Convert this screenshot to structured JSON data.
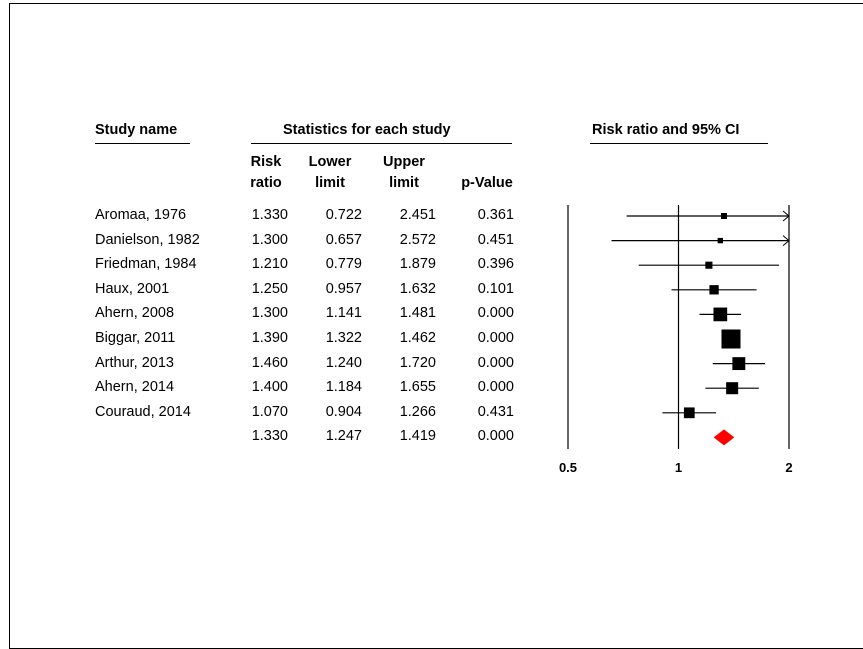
{
  "headers": {
    "study_name": "Study name",
    "statistics": "Statistics for each study",
    "plot_title": "Risk ratio and 95% CI"
  },
  "columns": [
    {
      "line1": "Risk",
      "line2": "ratio"
    },
    {
      "line1": "Lower",
      "line2": "limit"
    },
    {
      "line1": "Upper",
      "line2": "limit"
    },
    {
      "line1": "",
      "line2": "p-Value"
    }
  ],
  "rows": [
    {
      "study": "Aromaa, 1976",
      "rr": "1.330",
      "lower": "0.722",
      "upper": "2.451",
      "p": "0.361"
    },
    {
      "study": "Danielson, 1982",
      "rr": "1.300",
      "lower": "0.657",
      "upper": "2.572",
      "p": "0.451"
    },
    {
      "study": "Friedman, 1984",
      "rr": "1.210",
      "lower": "0.779",
      "upper": "1.879",
      "p": "0.396"
    },
    {
      "study": "Haux, 2001",
      "rr": "1.250",
      "lower": "0.957",
      "upper": "1.632",
      "p": "0.101"
    },
    {
      "study": "Ahern, 2008",
      "rr": "1.300",
      "lower": "1.141",
      "upper": "1.481",
      "p": "0.000"
    },
    {
      "study": "Biggar, 2011",
      "rr": "1.390",
      "lower": "1.322",
      "upper": "1.462",
      "p": "0.000"
    },
    {
      "study": "Arthur, 2013",
      "rr": "1.460",
      "lower": "1.240",
      "upper": "1.720",
      "p": "0.000"
    },
    {
      "study": "Ahern, 2014",
      "rr": "1.400",
      "lower": "1.184",
      "upper": "1.655",
      "p": "0.000"
    },
    {
      "study": "Couraud, 2014",
      "rr": "1.070",
      "lower": "0.904",
      "upper": "1.266",
      "p": "0.431"
    }
  ],
  "summary": {
    "study": "",
    "rr": "1.330",
    "lower": "1.247",
    "upper": "1.419",
    "p": "0.000"
  },
  "chart_data": {
    "type": "forest",
    "scale": "log",
    "xlim": [
      0.5,
      2
    ],
    "ticks": [
      "0.5",
      "1",
      "2"
    ],
    "reference_line": 1,
    "summary_color": "#ff0000",
    "marker_weights": [
      0.5,
      0.4,
      0.7,
      1.2,
      2.6,
      5.0,
      2.3,
      2.0,
      1.6
    ],
    "studies": [
      {
        "name": "Aromaa, 1976",
        "rr": 1.33,
        "lower": 0.722,
        "upper": 2.451
      },
      {
        "name": "Danielson, 1982",
        "rr": 1.3,
        "lower": 0.657,
        "upper": 2.572
      },
      {
        "name": "Friedman, 1984",
        "rr": 1.21,
        "lower": 0.779,
        "upper": 1.879
      },
      {
        "name": "Haux, 2001",
        "rr": 1.25,
        "lower": 0.957,
        "upper": 1.632
      },
      {
        "name": "Ahern, 2008",
        "rr": 1.3,
        "lower": 1.141,
        "upper": 1.481
      },
      {
        "name": "Biggar, 2011",
        "rr": 1.39,
        "lower": 1.322,
        "upper": 1.462
      },
      {
        "name": "Arthur, 2013",
        "rr": 1.46,
        "lower": 1.24,
        "upper": 1.72
      },
      {
        "name": "Ahern, 2014",
        "rr": 1.4,
        "lower": 1.184,
        "upper": 1.655
      },
      {
        "name": "Couraud, 2014",
        "rr": 1.07,
        "lower": 0.904,
        "upper": 1.266
      }
    ],
    "summary": {
      "rr": 1.33,
      "lower": 1.247,
      "upper": 1.419
    }
  }
}
